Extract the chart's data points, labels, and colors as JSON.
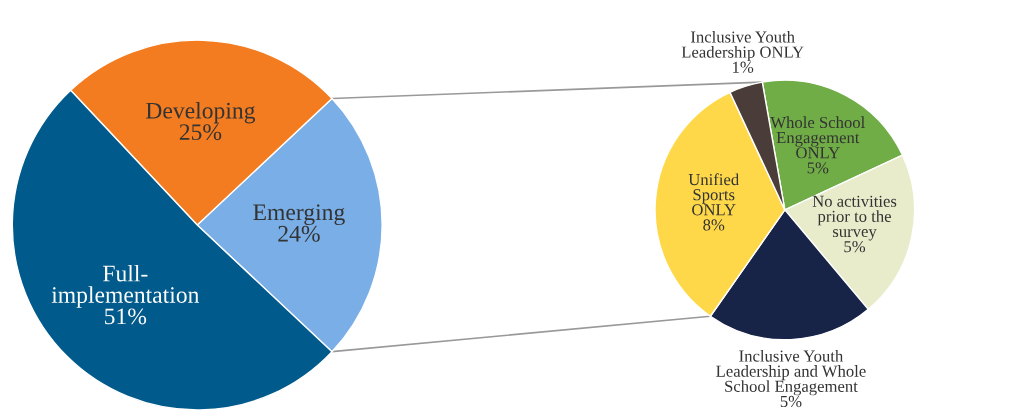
{
  "chart_data": [
    {
      "type": "pie",
      "categories": [
        "Emerging",
        "Developing",
        "Full-\nimplementation"
      ],
      "values": [
        24,
        25,
        51
      ],
      "colors": [
        "#7aaee6",
        "#f47c20",
        "#005a8b"
      ],
      "value_labels": [
        "24%",
        "25%",
        "51%"
      ]
    },
    {
      "type": "pie",
      "categories": [
        "Whole School\nEngagement\nONLY",
        "No activities\nprior to the\nsurvey",
        "Inclusive Youth\nLeadership and Whole\nSchool Engagement",
        "Unified\nSports\nONLY",
        "Inclusive Youth\nLeadership ONLY"
      ],
      "values": [
        5,
        5,
        5,
        8,
        1
      ],
      "colors": [
        "#70ad47",
        "#e8eccb",
        "#182447",
        "#ffd84a",
        "#4a3c38"
      ],
      "value_labels": [
        "5%",
        "5%",
        "5%",
        "8%",
        "1%"
      ]
    }
  ]
}
